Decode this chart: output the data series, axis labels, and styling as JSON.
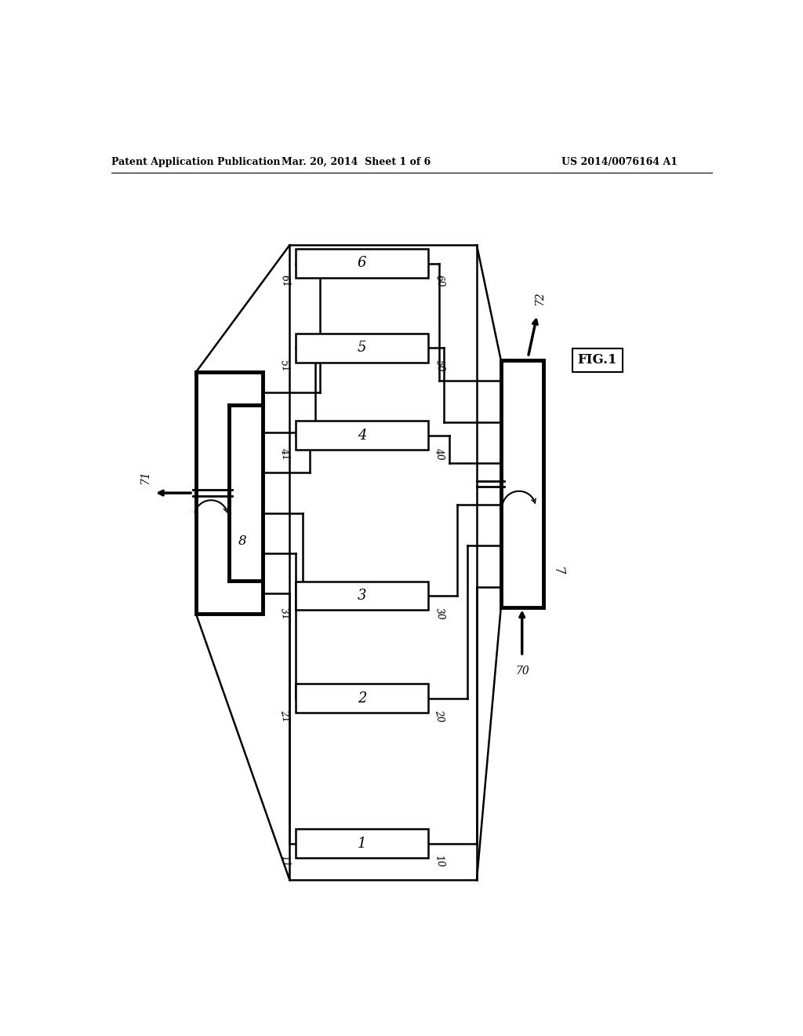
{
  "bg_color": "#ffffff",
  "header_left": "Patent Application Publication",
  "header_center": "Mar. 20, 2014  Sheet 1 of 6",
  "header_right": "US 2014/0076164 A1",
  "fig_label": "FIG.1",
  "adsorber_labels": [
    "1",
    "2",
    "3",
    "4",
    "5",
    "6"
  ],
  "right_tags": [
    "10",
    "20",
    "30",
    "40",
    "50",
    "60"
  ],
  "left_tags": [
    "11",
    "21",
    "31",
    "41",
    "51",
    "61"
  ],
  "right_dist_label": "7",
  "right_arrow_bottom_label": "70",
  "right_arrow_top_label": "72",
  "left_arrow_label": "71",
  "left_dist_label": "8"
}
